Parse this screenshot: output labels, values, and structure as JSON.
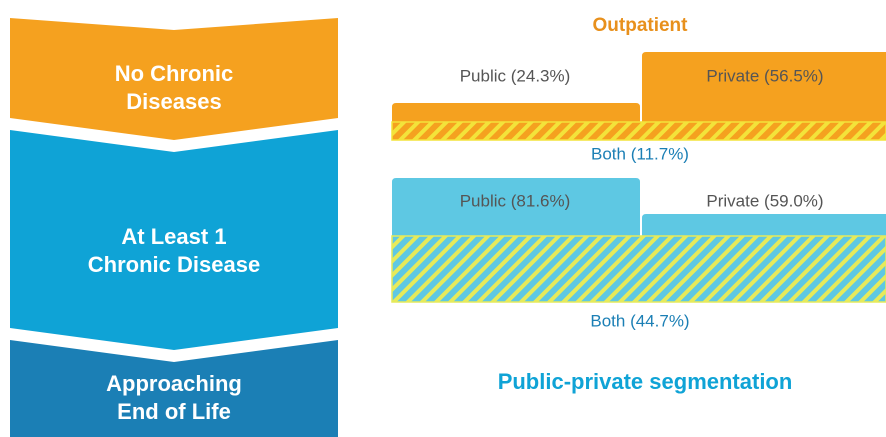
{
  "stages": [
    {
      "lines": [
        "No Chronic",
        "Diseases"
      ]
    },
    {
      "lines": [
        "At Least 1",
        "Chronic Disease"
      ]
    },
    {
      "lines": [
        "Approaching",
        "End of Life"
      ]
    }
  ],
  "panel": {
    "heading": "Outpatient",
    "groups": [
      {
        "public": "Public (24.3%)",
        "private": "Private (56.5%)",
        "both": "Both (11.7%)"
      },
      {
        "public": "Public (81.6%)",
        "private": "Private (59.0%)",
        "both": "Both (44.7%)"
      }
    ],
    "footer": "Public-private segmentation"
  }
}
